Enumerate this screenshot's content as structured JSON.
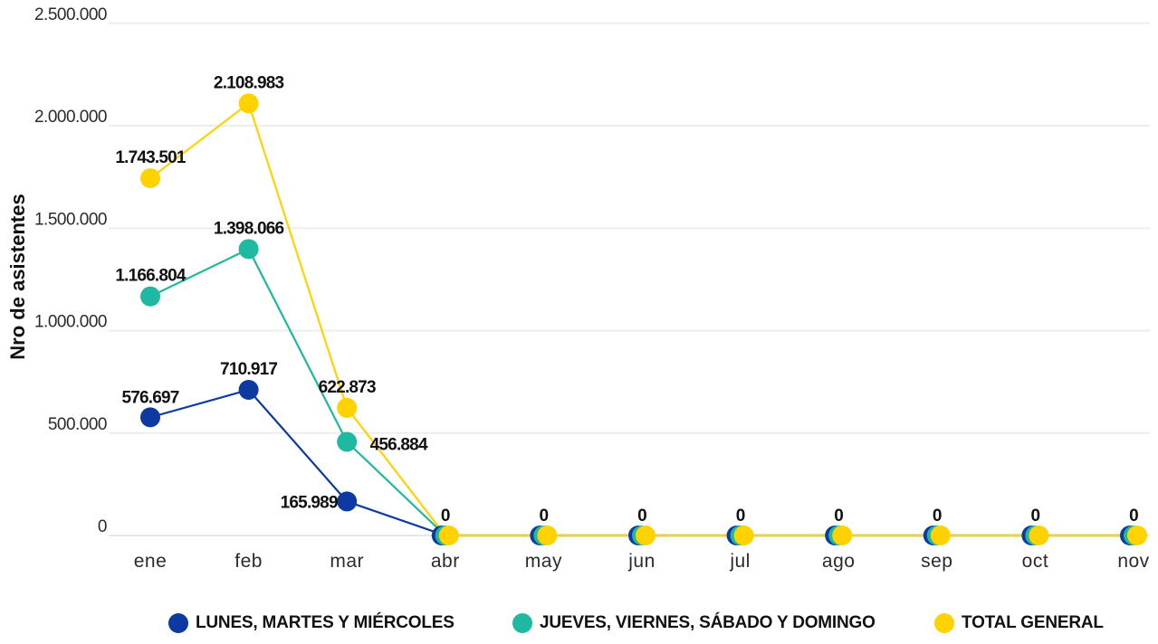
{
  "chart_data": {
    "type": "line",
    "title": "",
    "xlabel": "",
    "ylabel": "Nro de asistentes",
    "categories": [
      "ene",
      "feb",
      "mar",
      "abr",
      "may",
      "jun",
      "jul",
      "ago",
      "sep",
      "oct",
      "nov"
    ],
    "ylim": [
      0,
      2500000
    ],
    "yticks": [
      0,
      500000,
      1000000,
      1500000,
      2000000,
      2500000
    ],
    "ytick_labels": [
      "0",
      "500.000",
      "1.000.000",
      "1.500.000",
      "2.000.000",
      "2.500.000"
    ],
    "grid": true,
    "legend_position": "bottom",
    "series": [
      {
        "name": "LUNES, MARTES Y MIÉRCOLES",
        "color": "#0d3aa0",
        "values": [
          576697,
          710917,
          165989,
          0,
          0,
          0,
          0,
          0,
          0,
          0,
          0
        ],
        "labels": [
          "576.697",
          "710.917",
          "165.989",
          "",
          "",
          "",
          "",
          "",
          "",
          "",
          ""
        ]
      },
      {
        "name": "JUEVES, VIERNES, SÁBADO Y DOMINGO",
        "color": "#1fb8a0",
        "values": [
          1166804,
          1398066,
          456884,
          0,
          0,
          0,
          0,
          0,
          0,
          0,
          0
        ],
        "labels": [
          "1.166.804",
          "1.398.066",
          "456.884",
          "",
          "",
          "",
          "",
          "",
          "",
          "",
          ""
        ]
      },
      {
        "name": "TOTAL GENERAL",
        "color": "#ffd200",
        "values": [
          1743501,
          2108983,
          622873,
          0,
          0,
          0,
          0,
          0,
          0,
          0,
          0
        ],
        "labels": [
          "1.743.501",
          "2.108.983",
          "622.873",
          "0",
          "0",
          "0",
          "0",
          "0",
          "0",
          "0",
          "0"
        ]
      }
    ]
  }
}
